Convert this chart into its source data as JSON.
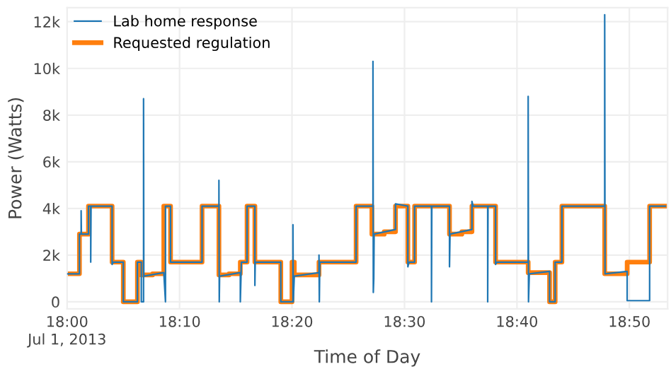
{
  "chart_data": {
    "type": "line",
    "xlabel": "Time of Day",
    "ylabel": "Power (Watts)",
    "xlim": [
      18.0,
      18.89
    ],
    "ylim": [
      -300,
      12600
    ],
    "xticks": [
      {
        "value": 18.0,
        "label": "18:00\nJul 1, 2013"
      },
      {
        "value": 18.1667,
        "label": "18:10"
      },
      {
        "value": 18.3333,
        "label": "18:20"
      },
      {
        "value": 18.5,
        "label": "18:30"
      },
      {
        "value": 18.6667,
        "label": "18:40"
      },
      {
        "value": 18.8333,
        "label": "18:50"
      }
    ],
    "yticks": [
      0,
      {
        "value": 2000,
        "label": "2k"
      },
      {
        "value": 4000,
        "label": "4k"
      },
      {
        "value": 6000,
        "label": "6k"
      },
      {
        "value": 8000,
        "label": "8k"
      },
      {
        "value": 10000,
        "label": "10k"
      },
      {
        "value": 12000,
        "label": "12k"
      }
    ],
    "grid": true,
    "legend": "top left",
    "series": [
      {
        "name": "Lab home response",
        "color": "#1f77b4",
        "x": [
          18.0,
          18.0183,
          18.0183,
          18.0208,
          18.0208,
          18.0212,
          18.0317,
          18.0317,
          18.035,
          18.035,
          18.0355,
          18.0667,
          18.0667,
          18.0683,
          18.0833,
          18.0833,
          18.1042,
          18.1042,
          18.11,
          18.11,
          18.1133,
          18.1133,
          18.1137,
          18.1433,
          18.1458,
          18.1458,
          18.1533,
          18.1533,
          18.2,
          18.2,
          18.225,
          18.225,
          18.2255,
          18.226,
          18.2567,
          18.2567,
          18.2583,
          18.2667,
          18.2667,
          18.2783,
          18.2783,
          18.2788,
          18.3167,
          18.3167,
          18.3347,
          18.3347,
          18.3352,
          18.3367,
          18.3733,
          18.3733,
          18.3738,
          18.3745,
          18.4283,
          18.4283,
          18.4533,
          18.4533,
          18.4538,
          18.4545,
          18.455,
          18.4867,
          18.4867,
          18.505,
          18.505,
          18.5067,
          18.515,
          18.515,
          18.54,
          18.54,
          18.5405,
          18.5667,
          18.5667,
          18.5675,
          18.6,
          18.6,
          18.6017,
          18.6233,
          18.6233,
          18.6238,
          18.635,
          18.635,
          18.6367,
          18.6833,
          18.6833,
          18.6838,
          18.685,
          18.715,
          18.715,
          18.7233,
          18.7233,
          18.7333,
          18.7333,
          18.7967,
          18.7967,
          18.7967,
          18.7972,
          18.83,
          18.83,
          18.8633,
          18.8633,
          18.8867
        ],
        "values": [
          1200,
          1200,
          2900,
          2900,
          3900,
          2900,
          2900,
          4100,
          4100,
          1700,
          4100,
          4100,
          1600,
          1700,
          1700,
          0,
          0,
          1700,
          1700,
          0,
          0,
          8700,
          1100,
          1250,
          0,
          4100,
          4100,
          1700,
          1700,
          4100,
          4100,
          5200,
          0,
          1100,
          1250,
          0,
          1700,
          1700,
          4100,
          4100,
          700,
          1700,
          1700,
          0,
          0,
          3300,
          0,
          1100,
          1250,
          2000,
          0,
          1700,
          1700,
          4100,
          4100,
          10300,
          400,
          1000,
          2900,
          3100,
          4200,
          4100,
          1500,
          1700,
          1700,
          4100,
          4100,
          0,
          4100,
          4100,
          1500,
          2900,
          3100,
          4300,
          4100,
          4100,
          0,
          4100,
          4100,
          1600,
          1700,
          1700,
          8800,
          0,
          1200,
          1300,
          0,
          0,
          1700,
          1700,
          4100,
          4100,
          5000,
          12300,
          1200,
          1300,
          50,
          50,
          4100,
          4100
        ]
      },
      {
        "name": "Requested regulation",
        "type": "step",
        "color": "#ff7f0e",
        "x": [
          18.0,
          18.0183,
          18.0317,
          18.0667,
          18.0833,
          18.1042,
          18.11,
          18.1267,
          18.1433,
          18.1533,
          18.2,
          18.225,
          18.24,
          18.2567,
          18.2667,
          18.2783,
          18.3167,
          18.3333,
          18.3367,
          18.3733,
          18.4283,
          18.4517,
          18.47,
          18.4867,
          18.505,
          18.515,
          18.5667,
          18.585,
          18.6,
          18.635,
          18.6833,
          18.715,
          18.7233,
          18.7333,
          18.7967,
          18.83,
          18.8633,
          18.8867
        ],
        "values": [
          1200,
          2900,
          4100,
          1700,
          0,
          1700,
          1150,
          1200,
          4100,
          1700,
          4100,
          1150,
          1200,
          1700,
          4100,
          1700,
          0,
          1700,
          1150,
          1700,
          4100,
          2900,
          3000,
          4100,
          1700,
          4100,
          2900,
          3000,
          4100,
          1700,
          1250,
          0,
          1700,
          4100,
          1200,
          1700,
          4100,
          4100
        ]
      }
    ]
  }
}
